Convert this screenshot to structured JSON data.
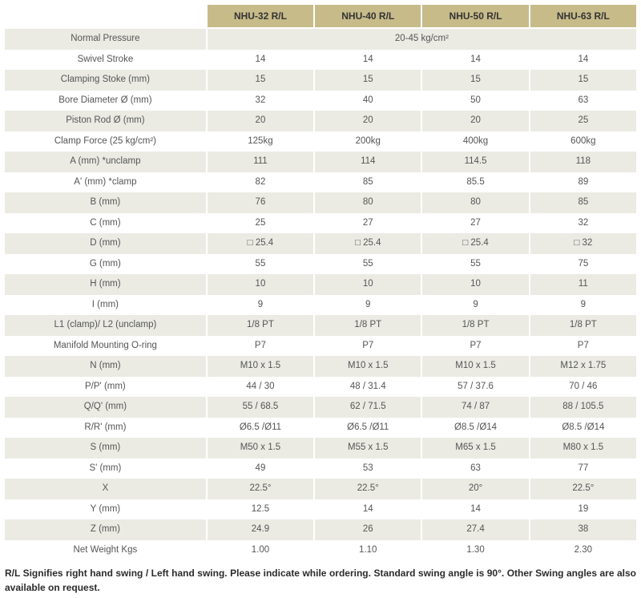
{
  "table": {
    "columns": [
      "NHU-32 R/L",
      "NHU-40 R/L",
      "NHU-50 R/L",
      "NHU-63 R/L"
    ],
    "merged_row": {
      "label": "Normal Pressure",
      "value": "20-45 kg/cm²"
    },
    "rows": [
      {
        "label": "Swivel Stroke",
        "cells": [
          "14",
          "14",
          "14",
          "14"
        ]
      },
      {
        "label": "Clamping Stoke (mm)",
        "cells": [
          "15",
          "15",
          "15",
          "15"
        ]
      },
      {
        "label": "Bore Diameter Ø (mm)",
        "cells": [
          "32",
          "40",
          "50",
          "63"
        ]
      },
      {
        "label": "Piston Rod Ø (mm)",
        "cells": [
          "20",
          "20",
          "20",
          "25"
        ]
      },
      {
        "label": "Clamp Force (25 kg/cm²)",
        "cells": [
          "125kg",
          "200kg",
          "400kg",
          "600kg"
        ]
      },
      {
        "label": "A (mm) *unclamp",
        "cells": [
          "111",
          "114",
          "114.5",
          "118"
        ]
      },
      {
        "label": "A' (mm) *clamp",
        "cells": [
          "82",
          "85",
          "85.5",
          "89"
        ]
      },
      {
        "label": "B (mm)",
        "cells": [
          "76",
          "80",
          "80",
          "85"
        ]
      },
      {
        "label": "C (mm)",
        "cells": [
          "25",
          "27",
          "27",
          "32"
        ]
      },
      {
        "label": "D (mm)",
        "cells": [
          "□ 25.4",
          "□ 25.4",
          "□ 25.4",
          "□ 32"
        ]
      },
      {
        "label": "G (mm)",
        "cells": [
          "55",
          "55",
          "55",
          "75"
        ]
      },
      {
        "label": "H (mm)",
        "cells": [
          "10",
          "10",
          "10",
          "11"
        ]
      },
      {
        "label": "I (mm)",
        "cells": [
          "9",
          "9",
          "9",
          "9"
        ]
      },
      {
        "label": "L1 (clamp)/ L2 (unclamp)",
        "cells": [
          "1/8 PT",
          "1/8 PT",
          "1/8 PT",
          "1/8 PT"
        ]
      },
      {
        "label": "Manifold Mounting O-ring",
        "cells": [
          "P7",
          "P7",
          "P7",
          "P7"
        ]
      },
      {
        "label": "N (mm)",
        "cells": [
          "M10 x 1.5",
          "M10 x 1.5",
          "M10 x 1.5",
          "M12 x 1.75"
        ]
      },
      {
        "label": "P/P' (mm)",
        "cells": [
          "44 / 30",
          "48 / 31.4",
          "57 / 37.6",
          "70 / 46"
        ]
      },
      {
        "label": "Q/Q' (mm)",
        "cells": [
          "55 / 68.5",
          "62 / 71.5",
          "74 / 87",
          "88 / 105.5"
        ]
      },
      {
        "label": "R/R' (mm)",
        "cells": [
          "Ø6.5 /Ø11",
          "Ø6.5 /Ø11",
          "Ø8.5 /Ø14",
          "Ø8.5 /Ø14"
        ]
      },
      {
        "label": "S (mm)",
        "cells": [
          "M50 x 1.5",
          "M55 x 1.5",
          "M65 x 1.5",
          "M80 x 1.5"
        ]
      },
      {
        "label": "S' (mm)",
        "cells": [
          "49",
          "53",
          "63",
          "77"
        ]
      },
      {
        "label": "X",
        "cells": [
          "22.5°",
          "22.5°",
          "20°",
          "22.5°"
        ]
      },
      {
        "label": "Y (mm)",
        "cells": [
          "12.5",
          "14",
          "14",
          "19"
        ]
      },
      {
        "label": "Z (mm)",
        "cells": [
          "24.9",
          "26",
          "27.4",
          "38"
        ]
      },
      {
        "label": "Net Weight Kgs",
        "cells": [
          "1.00",
          "1.10",
          "1.30",
          "2.30"
        ]
      }
    ]
  },
  "footnote": "R/L Signifies right hand swing / Left hand swing. Please indicate while ordering. Standard swing angle is 90°. Other Swing angles are also available on request.",
  "style": {
    "header_bg": "#c7bb8a",
    "row_odd_bg": "#ebebe4",
    "row_even_bg": "#ffffff",
    "text_color": "#555555",
    "font_size_header": 12,
    "font_size_body": 11.5
  }
}
